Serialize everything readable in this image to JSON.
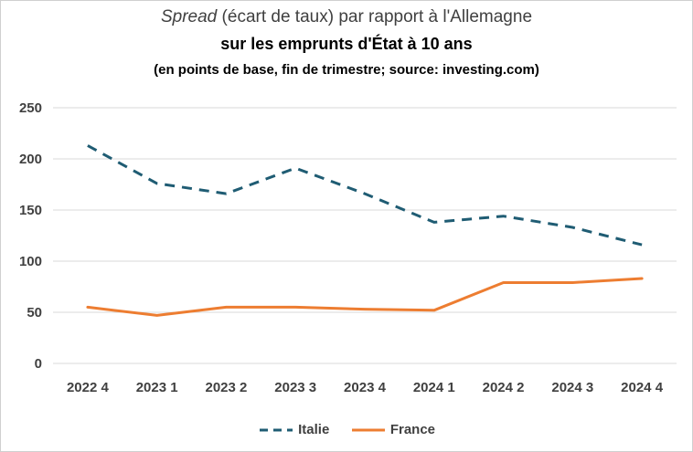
{
  "chart_data": {
    "type": "line",
    "title_italic": "Spread",
    "title_rest": " (écart de taux) par rapport à l'Allemagne",
    "subtitle": "sur les emprunts d'État à 10 ans",
    "note": "(en points de base, fin de trimestre; source: investing.com)",
    "categories": [
      "2022 4",
      "2023 1",
      "2023 2",
      "2023 3",
      "2023 4",
      "2024 1",
      "2024 2",
      "2024 3",
      "2024 4"
    ],
    "series": [
      {
        "name": "Italie",
        "values": [
          213,
          176,
          166,
          191,
          166,
          138,
          144,
          133,
          116
        ],
        "color": "#1f5c73",
        "style": "dashed"
      },
      {
        "name": "France",
        "values": [
          55,
          47,
          55,
          55,
          53,
          52,
          79,
          79,
          83
        ],
        "color": "#ed7d31",
        "style": "solid"
      }
    ],
    "ylim": [
      0,
      250
    ],
    "yticks": [
      0,
      50,
      100,
      150,
      200,
      250
    ],
    "grid": true,
    "legend": "bottom"
  }
}
